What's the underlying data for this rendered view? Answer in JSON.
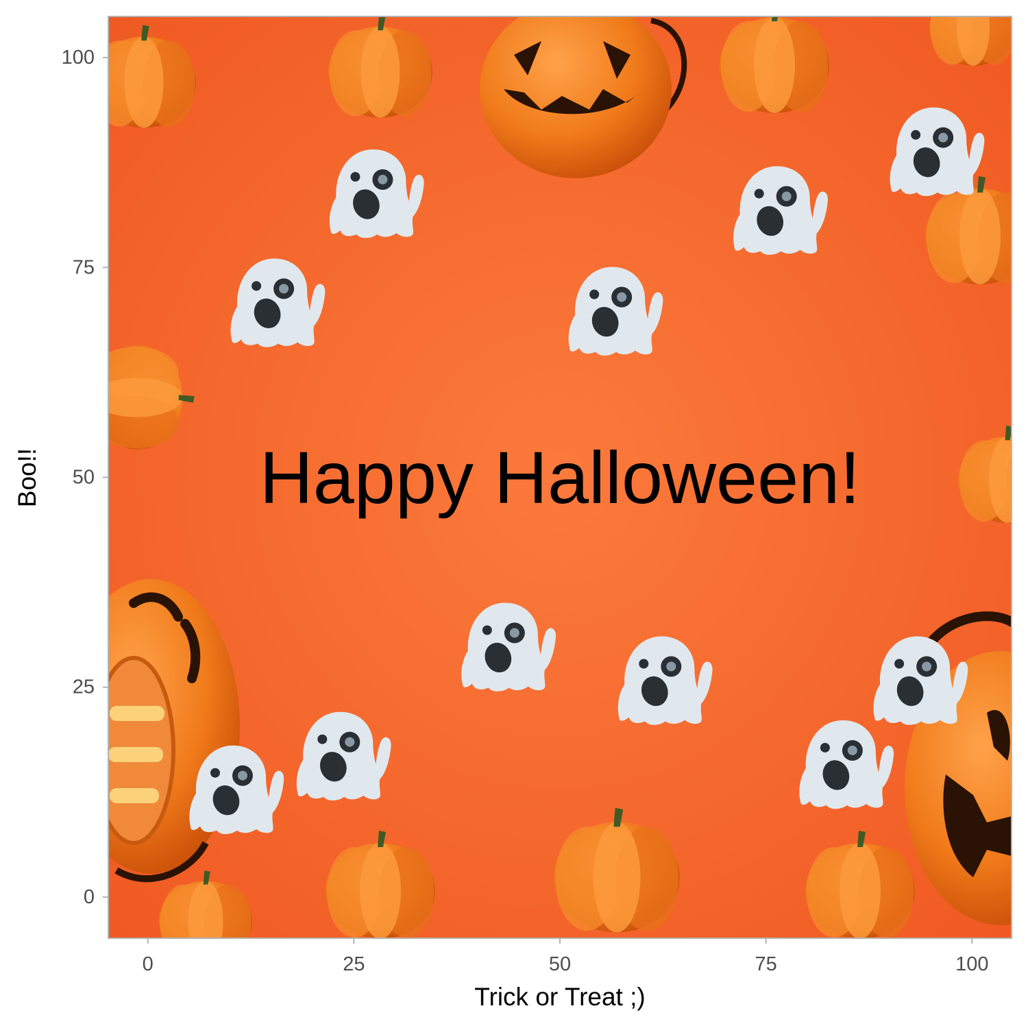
{
  "chart_data": {
    "type": "scatter",
    "title": "",
    "xlabel": "Trick or Treat ;)",
    "ylabel": "Boo!!",
    "xlim": [
      -4.8,
      104.8
    ],
    "ylim": [
      -4.9,
      104.9
    ],
    "x_ticks": [
      0,
      25,
      50,
      75,
      100
    ],
    "y_ticks": [
      0,
      25,
      50,
      75,
      100
    ],
    "grid": false,
    "legend": "none",
    "marker": "ghost-emoji",
    "points": [
      {
        "x": 27,
        "y": 84
      },
      {
        "x": 15,
        "y": 71
      },
      {
        "x": 56,
        "y": 70
      },
      {
        "x": 76,
        "y": 82
      },
      {
        "x": 95,
        "y": 89
      },
      {
        "x": 43,
        "y": 30
      },
      {
        "x": 62,
        "y": 26
      },
      {
        "x": 93,
        "y": 26
      },
      {
        "x": 23,
        "y": 17
      },
      {
        "x": 10,
        "y": 13
      },
      {
        "x": 84,
        "y": 16
      }
    ],
    "annotations": [
      {
        "text": "Happy Halloween!",
        "x": 50,
        "y": 50
      }
    ],
    "background": "halloween pumpkins and jack-o-lanterns photo"
  },
  "colors": {
    "background_orange": "#f7692e",
    "pumpkin": "#f0821f",
    "pumpkin_dark": "#d8560c",
    "jack_face": "#2a1205",
    "ghost_body": "#e1e8ed",
    "ghost_features": "#292f33",
    "ghost_eye_inner": "#8899a6",
    "axis_border": "#b3b3b3",
    "tick_text": "#4d4d4d"
  }
}
